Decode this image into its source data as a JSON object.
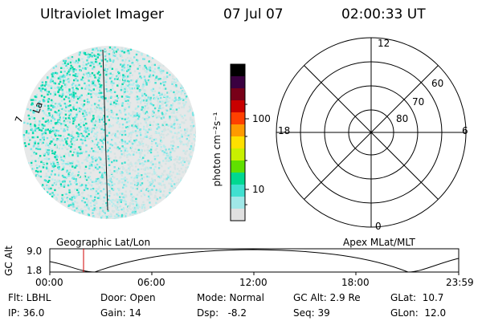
{
  "header": {
    "title": "Ultraviolet Imager",
    "date": "07 Jul 07",
    "time": "02:00:33 UT"
  },
  "image_panel": {
    "label_left": "7",
    "label_la": "La"
  },
  "colorbar": {
    "unit_label": "photon cm⁻²s⁻¹",
    "tick_100": "100",
    "tick_10": "10",
    "colors": [
      "#000000",
      "#3a0040",
      "#780018",
      "#c80000",
      "#ff4000",
      "#ff9a00",
      "#ffe000",
      "#c8f000",
      "#60e000",
      "#00d890",
      "#40e0d0",
      "#a0e8e8",
      "#e0e0e0"
    ]
  },
  "polar_plot": {
    "lat_labels": [
      "80",
      "70",
      "60"
    ],
    "mlt_labels": {
      "top": "12",
      "right": "6",
      "left": "18",
      "bottom": "0"
    }
  },
  "orbit_panel": {
    "left_title": "Geographic Lat/Lon",
    "right_title": "Apex MLat/MLT",
    "y_axis_label": "GC Alt",
    "y_top": "9.0",
    "y_bottom": "1.8",
    "x_ticks": [
      "00:00",
      "06:00",
      "12:00",
      "18:00",
      "23:59"
    ]
  },
  "footer": {
    "flt": "Flt: LBHL",
    "ip": "IP: 36.0",
    "door": "Door: Open",
    "gain": "Gain: 14",
    "mode": "Mode: Normal",
    "dsp": "Dsp:   -8.2",
    "gc_alt": "GC Alt: 2.9 Re",
    "seq": "Seq: 39",
    "glat": "GLat:  10.7",
    "glon": "GLon:  12.0"
  }
}
